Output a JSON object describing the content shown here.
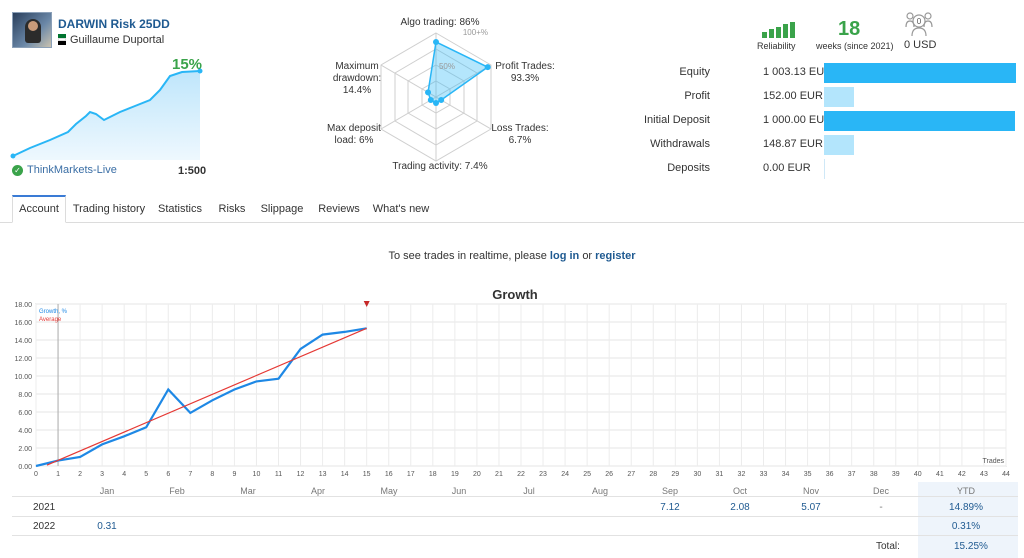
{
  "account": {
    "name": "DARWIN Risk 25DD",
    "owner": "Guillaume Duportal",
    "growth": "15%",
    "broker": "ThinkMarkets-Live",
    "leverage": "1:500",
    "flag_colors": [
      "#00732f",
      "#ffffff",
      "#000000",
      "#ff0000"
    ]
  },
  "radar": {
    "algo_trading": "Algo trading: 86%",
    "profit_trades": "Profit Trades:",
    "profit_trades_val": "93.3%",
    "loss_trades": "Loss Trades:",
    "loss_trades_val": "6.7%",
    "trading_activity": "Trading activity: 7.4%",
    "max_deposit_load": "Max deposit",
    "max_deposit_load_val": "load: 6%",
    "max_drawdown": "Maximum",
    "max_drawdown_2": "drawdown:",
    "max_drawdown_val": "14.4%",
    "ring_100": "100+%",
    "ring_50": "50%",
    "values": [
      86,
      93.3,
      6.7,
      7.4,
      6,
      14.4
    ],
    "color": "#29b6f6"
  },
  "stats": {
    "reliability_label": "Reliability",
    "reliability_bars": 5,
    "weeks": "18",
    "weeks_label": "weeks (since 2021)",
    "investors_count": "0",
    "investors_label": "0 USD"
  },
  "financials": [
    {
      "label": "Equity",
      "value": "1 003.13 EUR",
      "fraction": 1.0,
      "color": "#29b6f6"
    },
    {
      "label": "Profit",
      "value": "152.00 EUR",
      "fraction": 0.152,
      "color": "#b3e5fc"
    },
    {
      "label": "Initial Deposit",
      "value": "1 000.00 EUR",
      "fraction": 0.997,
      "color": "#29b6f6"
    },
    {
      "label": "Withdrawals",
      "value": "148.87 EUR",
      "fraction": 0.148,
      "color": "#b3e5fc"
    },
    {
      "label": "Deposits",
      "value": "0.00 EUR",
      "fraction": 0.0,
      "color": "#b3e5fc"
    }
  ],
  "tabs": [
    "Account",
    "Trading history",
    "Statistics",
    "Risks",
    "Slippage",
    "Reviews",
    "What's new"
  ],
  "realtime": {
    "prefix": "To see trades in realtime, please",
    "login": "log in",
    "middle": "or",
    "register": "register"
  },
  "chart_data": {
    "type": "line",
    "title": "Growth",
    "xlabel": "Trades",
    "ylabel": "",
    "xlim": [
      0,
      44
    ],
    "ylim": [
      0,
      18
    ],
    "x_ticks": [
      0,
      1,
      2,
      3,
      4,
      5,
      6,
      7,
      8,
      9,
      10,
      11,
      12,
      13,
      14,
      15,
      16,
      17,
      18,
      19,
      20,
      21,
      22,
      23,
      24,
      25,
      26,
      27,
      28,
      29,
      30,
      31,
      32,
      33,
      34,
      35,
      36,
      37,
      38,
      39,
      40,
      41,
      42,
      43,
      44
    ],
    "y_ticks": [
      "0.00",
      "2.00",
      "4.00",
      "6.00",
      "8.00",
      "10.00",
      "12.00",
      "14.00",
      "16.00",
      "18.00"
    ],
    "legend": [
      "Growth, %",
      "Average"
    ],
    "series": [
      {
        "name": "Growth, %",
        "color": "#1e88e5",
        "x": [
          0,
          1,
          2,
          3,
          4,
          5,
          6,
          7,
          8,
          9,
          10,
          11,
          12,
          13,
          14,
          15
        ],
        "y": [
          0,
          0.6,
          1.0,
          2.4,
          3.3,
          4.3,
          8.5,
          5.9,
          7.3,
          8.5,
          9.4,
          9.7,
          13.0,
          14.6,
          14.9,
          15.3
        ]
      },
      {
        "name": "Average",
        "color": "#e53935",
        "x": [
          0.5,
          15
        ],
        "y": [
          0.1,
          15.3
        ]
      }
    ],
    "grid": true
  },
  "monthly": {
    "months": [
      "Jan",
      "Feb",
      "Mar",
      "Apr",
      "May",
      "Jun",
      "Jul",
      "Aug",
      "Sep",
      "Oct",
      "Nov",
      "Dec"
    ],
    "ytd_label": "YTD",
    "rows": [
      {
        "year": "2021",
        "values": {
          "Sep": "7.12",
          "Oct": "2.08",
          "Nov": "5.07",
          "Dec": "-"
        },
        "ytd": "14.89%"
      },
      {
        "year": "2022",
        "values": {
          "Jan": "0.31"
        },
        "ytd": "0.31%"
      }
    ],
    "total_label": "Total:",
    "total": "15.25%"
  }
}
